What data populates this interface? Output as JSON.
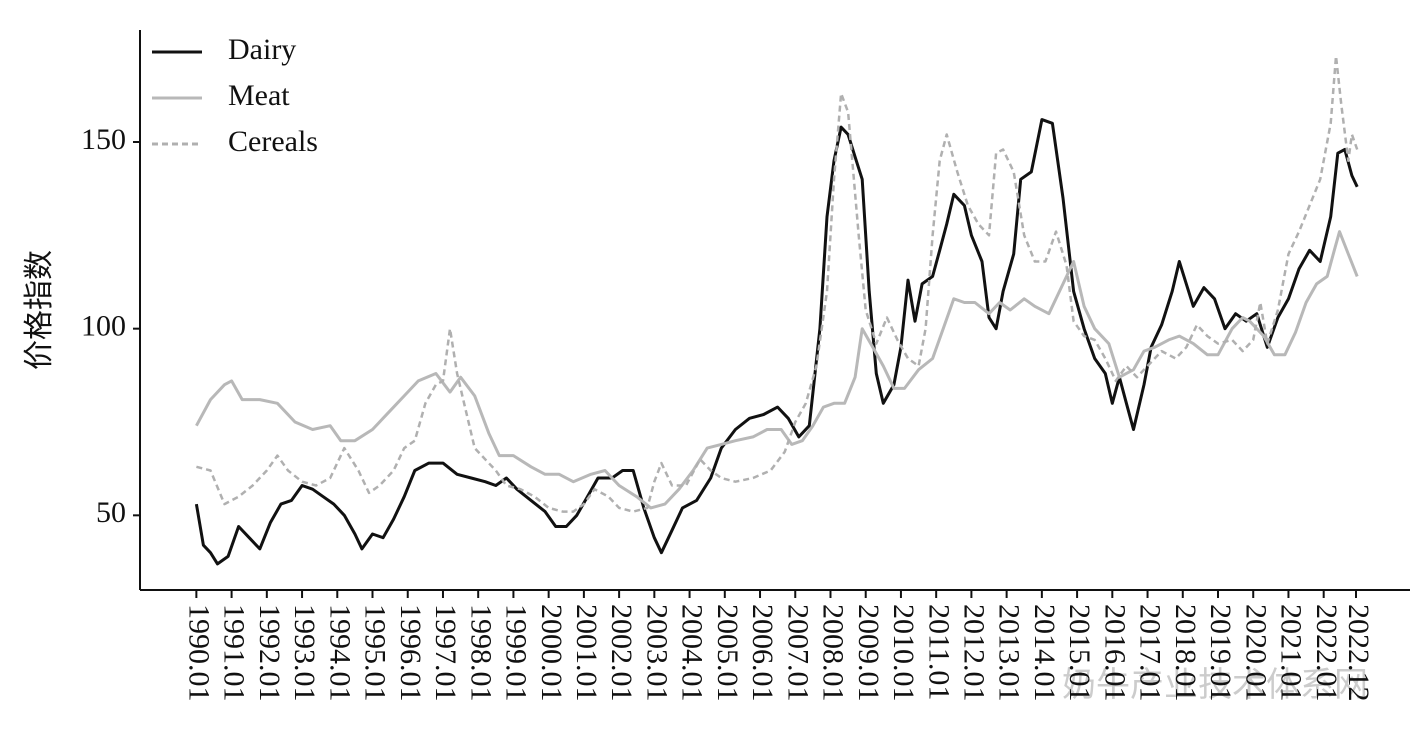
{
  "chart_data": {
    "type": "line",
    "y_label": "价格指数",
    "watermark": "奶牛产业技术体系网",
    "xlim": [
      1988.4,
      2024.45
    ],
    "ylim": [
      30,
      180
    ],
    "yticks": [
      50,
      100,
      150
    ],
    "xticks": [
      {
        "value": 1990,
        "label": "1990.01"
      },
      {
        "value": 1991,
        "label": "1991.01"
      },
      {
        "value": 1992,
        "label": "1992.01"
      },
      {
        "value": 1993,
        "label": "1993.01"
      },
      {
        "value": 1994,
        "label": "1994.01"
      },
      {
        "value": 1995,
        "label": "1995.01"
      },
      {
        "value": 1996,
        "label": "1996.01"
      },
      {
        "value": 1997,
        "label": "1997.01"
      },
      {
        "value": 1998,
        "label": "1998.01"
      },
      {
        "value": 1999,
        "label": "1999.01"
      },
      {
        "value": 2000,
        "label": "2000.01"
      },
      {
        "value": 2001,
        "label": "2001.01"
      },
      {
        "value": 2002,
        "label": "2002.01"
      },
      {
        "value": 2003,
        "label": "2003.01"
      },
      {
        "value": 2004,
        "label": "2004.01"
      },
      {
        "value": 2005,
        "label": "2005.01"
      },
      {
        "value": 2006,
        "label": "2006.01"
      },
      {
        "value": 2007,
        "label": "2007.01"
      },
      {
        "value": 2008,
        "label": "2008.01"
      },
      {
        "value": 2009,
        "label": "2009.01"
      },
      {
        "value": 2010,
        "label": "2010.01"
      },
      {
        "value": 2011,
        "label": "2011.01"
      },
      {
        "value": 2012,
        "label": "2012.01"
      },
      {
        "value": 2013,
        "label": "2013.01"
      },
      {
        "value": 2014,
        "label": "2014.01"
      },
      {
        "value": 2015,
        "label": "2015.01"
      },
      {
        "value": 2016,
        "label": "2016.01"
      },
      {
        "value": 2017,
        "label": "2017.01"
      },
      {
        "value": 2018,
        "label": "2018.01"
      },
      {
        "value": 2019,
        "label": "2019.01"
      },
      {
        "value": 2020,
        "label": "2020.01"
      },
      {
        "value": 2021,
        "label": "2021.01"
      },
      {
        "value": 2022,
        "label": "2022.01"
      },
      {
        "value": 2022.917,
        "label": "2022.12"
      }
    ],
    "legend": "upper left",
    "series": [
      {
        "name": "Dairy",
        "color": "#111111",
        "dashed": false,
        "x": [
          1990.0,
          1990.2,
          1990.4,
          1990.6,
          1990.9,
          1991.2,
          1991.5,
          1991.8,
          1992.1,
          1992.4,
          1992.7,
          1993.0,
          1993.3,
          1993.6,
          1993.9,
          1994.2,
          1994.5,
          1994.7,
          1995.0,
          1995.3,
          1995.6,
          1995.9,
          1996.2,
          1996.6,
          1997.0,
          1997.4,
          1997.8,
          1998.2,
          1998.5,
          1998.8,
          1999.1,
          1999.5,
          1999.9,
          2000.2,
          2000.5,
          2000.8,
          2001.1,
          2001.4,
          2001.8,
          2002.1,
          2002.4,
          2002.7,
          2003.0,
          2003.2,
          2003.5,
          2003.8,
          2004.2,
          2004.6,
          2004.9,
          2005.3,
          2005.7,
          2006.1,
          2006.5,
          2006.8,
          2007.1,
          2007.4,
          2007.7,
          2007.9,
          2008.1,
          2008.3,
          2008.5,
          2008.7,
          2008.9,
          2009.1,
          2009.3,
          2009.5,
          2009.8,
          2010.0,
          2010.2,
          2010.4,
          2010.6,
          2010.9,
          2011.1,
          2011.3,
          2011.5,
          2011.8,
          2012.0,
          2012.3,
          2012.5,
          2012.7,
          2012.9,
          2013.2,
          2013.4,
          2013.7,
          2014.0,
          2014.3,
          2014.6,
          2014.9,
          2015.2,
          2015.5,
          2015.8,
          2016.0,
          2016.2,
          2016.4,
          2016.6,
          2016.9,
          2017.1,
          2017.4,
          2017.7,
          2017.9,
          2018.1,
          2018.3,
          2018.6,
          2018.9,
          2019.2,
          2019.5,
          2019.8,
          2020.1,
          2020.4,
          2020.7,
          2021.0,
          2021.3,
          2021.6,
          2021.9,
          2022.2,
          2022.4,
          2022.6,
          2022.8,
          2022.95
        ],
        "values": [
          53,
          42,
          40,
          37,
          39,
          47,
          44,
          41,
          48,
          53,
          54,
          58,
          57,
          55,
          53,
          50,
          45,
          41,
          45,
          44,
          49,
          55,
          62,
          64,
          64,
          61,
          60,
          59,
          58,
          60,
          57,
          54,
          51,
          47,
          47,
          50,
          55,
          60,
          60,
          62,
          62,
          52,
          44,
          40,
          46,
          52,
          54,
          60,
          68,
          73,
          76,
          77,
          79,
          76,
          71,
          74,
          100,
          130,
          145,
          154,
          152,
          146,
          140,
          110,
          88,
          80,
          85,
          95,
          113,
          102,
          112,
          114,
          121,
          128,
          136,
          133,
          125,
          118,
          103,
          100,
          110,
          120,
          140,
          142,
          156,
          155,
          135,
          110,
          100,
          92,
          88,
          80,
          87,
          80,
          73,
          85,
          95,
          101,
          110,
          118,
          112,
          106,
          111,
          108,
          100,
          104,
          102,
          104,
          95,
          103,
          108,
          116,
          121,
          118,
          130,
          147,
          148,
          141,
          138
        ]
      },
      {
        "name": "Meat",
        "color": "#b8b8b8",
        "dashed": false,
        "x": [
          1990.0,
          1990.4,
          1990.8,
          1991.0,
          1991.3,
          1991.8,
          1992.3,
          1992.8,
          1993.3,
          1993.8,
          1994.1,
          1994.5,
          1995.0,
          1995.5,
          1995.9,
          1996.3,
          1996.8,
          1997.2,
          1997.5,
          1997.9,
          1998.3,
          1998.6,
          1999.0,
          1999.5,
          1999.9,
          2000.3,
          2000.7,
          2001.2,
          2001.6,
          2002.0,
          2002.5,
          2002.9,
          2003.3,
          2003.7,
          2004.1,
          2004.5,
          2004.9,
          2005.3,
          2005.8,
          2006.2,
          2006.6,
          2006.9,
          2007.2,
          2007.5,
          2007.8,
          2008.1,
          2008.4,
          2008.7,
          2008.9,
          2009.2,
          2009.5,
          2009.8,
          2010.1,
          2010.5,
          2010.9,
          2011.2,
          2011.5,
          2011.8,
          2012.1,
          2012.5,
          2012.8,
          2013.1,
          2013.5,
          2013.8,
          2014.2,
          2014.6,
          2014.9,
          2015.2,
          2015.5,
          2015.9,
          2016.2,
          2016.6,
          2016.9,
          2017.2,
          2017.6,
          2017.9,
          2018.3,
          2018.7,
          2019.0,
          2019.4,
          2019.7,
          2019.9,
          2020.3,
          2020.6,
          2020.9,
          2021.2,
          2021.5,
          2021.8,
          2022.1,
          2022.3,
          2022.45,
          2022.7,
          2022.95
        ],
        "values": [
          74,
          81,
          85,
          86,
          81,
          81,
          80,
          75,
          73,
          74,
          70,
          70,
          73,
          78,
          82,
          86,
          88,
          83,
          87,
          82,
          72,
          66,
          66,
          63,
          61,
          61,
          59,
          61,
          62,
          58,
          55,
          52,
          53,
          57,
          62,
          68,
          69,
          70,
          71,
          73,
          73,
          69,
          70,
          74,
          79,
          80,
          80,
          87,
          100,
          95,
          90,
          84,
          84,
          89,
          92,
          100,
          108,
          107,
          107,
          104,
          107,
          105,
          108,
          106,
          104,
          112,
          118,
          106,
          100,
          96,
          87,
          89,
          94,
          95,
          97,
          98,
          96,
          93,
          93,
          100,
          103,
          102,
          98,
          93,
          93,
          99,
          107,
          112,
          114,
          121,
          126,
          120,
          114
        ]
      },
      {
        "name": "Cereals",
        "color": "#b0b0b0",
        "dashed": true,
        "x": [
          1990.0,
          1990.4,
          1990.8,
          1991.2,
          1991.6,
          1992.0,
          1992.3,
          1992.6,
          1993.0,
          1993.4,
          1993.8,
          1994.2,
          1994.6,
          1994.9,
          1995.2,
          1995.6,
          1995.9,
          1996.2,
          1996.5,
          1996.8,
          1997.0,
          1997.2,
          1997.4,
          1997.6,
          1997.9,
          1998.2,
          1998.5,
          1998.8,
          1999.2,
          1999.6,
          2000.0,
          2000.4,
          2000.7,
          2001.0,
          2001.3,
          2001.7,
          2002.0,
          2002.4,
          2002.8,
          2003.0,
          2003.2,
          2003.5,
          2003.9,
          2004.3,
          2004.6,
          2004.9,
          2005.3,
          2005.8,
          2006.3,
          2006.7,
          2007.0,
          2007.3,
          2007.6,
          2007.9,
          2008.1,
          2008.3,
          2008.5,
          2008.8,
          2009.0,
          2009.3,
          2009.6,
          2009.9,
          2010.2,
          2010.5,
          2010.7,
          2010.9,
          2011.1,
          2011.3,
          2011.6,
          2011.9,
          2012.2,
          2012.5,
          2012.7,
          2012.9,
          2013.2,
          2013.5,
          2013.8,
          2014.1,
          2014.4,
          2014.7,
          2014.9,
          2015.2,
          2015.5,
          2015.8,
          2016.1,
          2016.4,
          2016.7,
          2017.0,
          2017.4,
          2017.8,
          2018.1,
          2018.4,
          2018.7,
          2019.0,
          2019.4,
          2019.7,
          2020.0,
          2020.2,
          2020.4,
          2020.7,
          2021.0,
          2021.3,
          2021.6,
          2021.9,
          2022.2,
          2022.35,
          2022.5,
          2022.7,
          2022.8,
          2022.95
        ],
        "values": [
          63,
          62,
          53,
          55,
          58,
          62,
          66,
          62,
          59,
          58,
          60,
          68,
          62,
          56,
          58,
          62,
          68,
          70,
          80,
          85,
          86,
          100,
          88,
          80,
          68,
          65,
          62,
          58,
          57,
          55,
          52,
          51,
          51,
          53,
          57,
          55,
          52,
          51,
          52,
          59,
          64,
          58,
          58,
          65,
          62,
          60,
          59,
          60,
          62,
          67,
          75,
          80,
          90,
          110,
          140,
          163,
          158,
          125,
          105,
          96,
          103,
          97,
          92,
          90,
          100,
          125,
          145,
          152,
          142,
          133,
          128,
          125,
          147,
          148,
          142,
          125,
          118,
          118,
          126,
          117,
          102,
          98,
          97,
          92,
          86,
          90,
          87,
          90,
          94,
          92,
          95,
          101,
          98,
          96,
          97,
          94,
          97,
          107,
          96,
          105,
          120,
          126,
          133,
          140,
          155,
          173,
          160,
          145,
          152,
          148
        ]
      }
    ]
  }
}
